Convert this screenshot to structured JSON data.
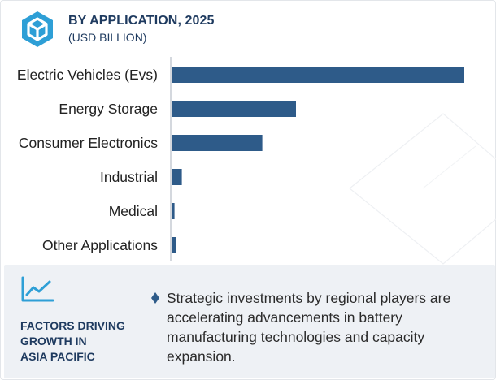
{
  "header": {
    "title": "BY APPLICATION, 2025",
    "subtitle": "(USD BILLION)",
    "logo_icon": "hexagon-logo-icon"
  },
  "chart_data": {
    "type": "bar",
    "orientation": "horizontal",
    "categories": [
      "Electric Vehicles (Evs)",
      "Energy Storage",
      "Consumer Electronics",
      "Industrial",
      "Medical",
      "Other Applications"
    ],
    "values": [
      100,
      42.5,
      31,
      3.5,
      1,
      1.6
    ],
    "xlim": [
      0,
      100
    ],
    "bar_color": "#2e5b89",
    "grid": false,
    "legend": "none"
  },
  "footer": {
    "icon": "trend-line-icon",
    "label": "FACTORS DRIVING\nGROWTH IN\nASIA PACIFIC",
    "bullet_icon": "diamond-bullet-icon",
    "bullet_text": "Strategic investments by regional players are accelerating advancements in battery manufacturing technologies and capacity expansion."
  },
  "colors": {
    "accent": "#2e9fd6",
    "navy": "#1e3a5f",
    "footer_bg": "#eef1f5"
  }
}
